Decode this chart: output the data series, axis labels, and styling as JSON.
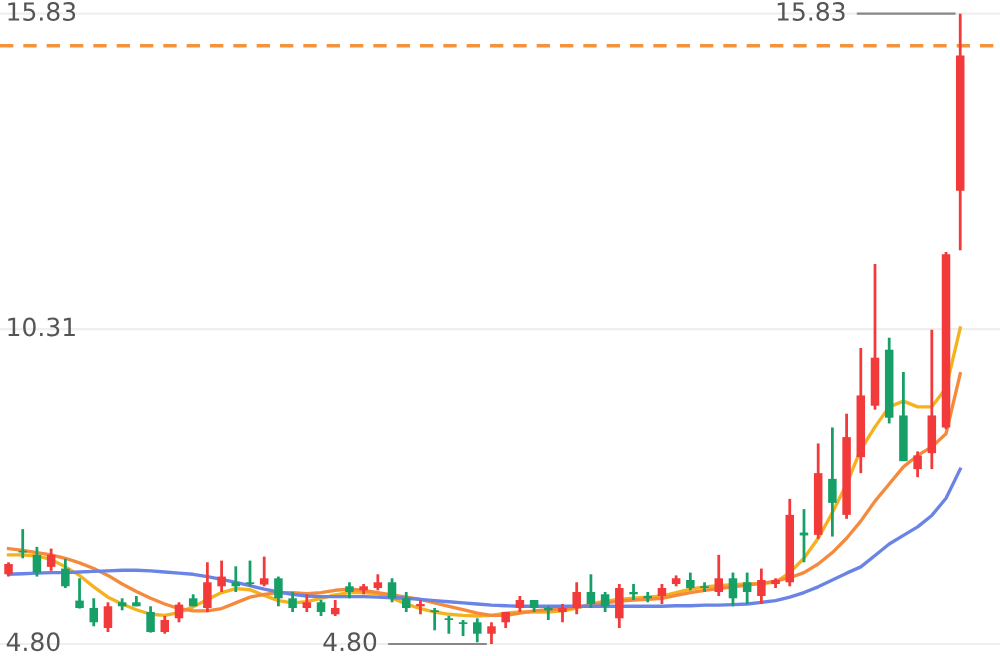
{
  "chart_data": {
    "type": "candlestick",
    "categories": [
      null,
      null,
      null,
      null,
      null,
      null,
      null,
      null,
      null,
      null,
      null,
      null,
      null,
      null,
      null,
      null,
      null,
      null,
      null,
      null,
      null,
      null,
      null,
      null,
      null,
      null,
      null,
      null,
      null,
      null,
      null,
      null,
      null,
      null,
      null,
      null,
      null,
      null,
      null,
      null,
      null,
      null,
      null,
      null,
      null,
      null,
      null,
      null,
      null,
      null,
      null,
      null,
      null,
      null,
      null,
      null,
      null,
      null,
      null,
      null,
      null,
      null,
      null,
      null,
      null,
      null,
      null,
      null
    ],
    "ohlc": [
      [
        6.02,
        6.23,
        5.98,
        6.2
      ],
      [
        6.43,
        6.81,
        6.3,
        6.4
      ],
      [
        6.36,
        6.5,
        5.98,
        6.05
      ],
      [
        6.15,
        6.47,
        6.08,
        6.36
      ],
      [
        6.12,
        6.29,
        5.78,
        5.81
      ],
      [
        5.56,
        5.95,
        5.42,
        5.43
      ],
      [
        5.43,
        5.6,
        5.11,
        5.18
      ],
      [
        5.08,
        5.53,
        5.01,
        5.46
      ],
      [
        5.53,
        5.6,
        5.39,
        5.46
      ],
      [
        5.53,
        5.64,
        5.46,
        5.46
      ],
      [
        5.36,
        5.46,
        5.0,
        5.01
      ],
      [
        5.01,
        5.29,
        4.98,
        5.22
      ],
      [
        5.25,
        5.53,
        5.18,
        5.49
      ],
      [
        5.6,
        5.67,
        5.46,
        5.46
      ],
      [
        5.43,
        6.23,
        5.36,
        5.88
      ],
      [
        5.81,
        6.26,
        5.71,
        5.98
      ],
      [
        5.88,
        6.16,
        5.71,
        5.81
      ],
      [
        5.88,
        6.26,
        5.81,
        5.85
      ],
      [
        5.84,
        6.33,
        5.81,
        5.95
      ],
      [
        5.95,
        5.98,
        5.46,
        5.6
      ],
      [
        5.6,
        5.71,
        5.36,
        5.43
      ],
      [
        5.43,
        5.67,
        5.36,
        5.53
      ],
      [
        5.53,
        5.57,
        5.29,
        5.36
      ],
      [
        5.32,
        5.57,
        5.29,
        5.43
      ],
      [
        5.81,
        5.88,
        5.6,
        5.71
      ],
      [
        5.74,
        5.85,
        5.67,
        5.81
      ],
      [
        5.78,
        6.02,
        5.74,
        5.88
      ],
      [
        5.88,
        5.95,
        5.53,
        5.6
      ],
      [
        5.6,
        5.71,
        5.36,
        5.43
      ],
      [
        5.46,
        5.57,
        5.32,
        5.5
      ],
      [
        5.39,
        5.43,
        5.04,
        5.36
      ],
      [
        5.25,
        5.29,
        4.98,
        5.22
      ],
      [
        5.18,
        5.22,
        4.94,
        5.15
      ],
      [
        5.18,
        5.25,
        4.83,
        4.98
      ],
      [
        4.98,
        5.18,
        4.8,
        5.11
      ],
      [
        5.18,
        5.36,
        5.08,
        5.36
      ],
      [
        5.43,
        5.64,
        5.36,
        5.57
      ],
      [
        5.57,
        5.57,
        5.36,
        5.43
      ],
      [
        5.43,
        5.46,
        5.22,
        5.39
      ],
      [
        5.36,
        5.5,
        5.18,
        5.43
      ],
      [
        5.43,
        5.88,
        5.32,
        5.71
      ],
      [
        5.71,
        6.02,
        5.43,
        5.5
      ],
      [
        5.67,
        5.71,
        5.36,
        5.46
      ],
      [
        5.25,
        5.85,
        5.08,
        5.78
      ],
      [
        5.71,
        5.85,
        5.57,
        5.67
      ],
      [
        5.64,
        5.71,
        5.53,
        5.6
      ],
      [
        5.64,
        5.85,
        5.5,
        5.78
      ],
      [
        5.85,
        6.0,
        5.81,
        5.95
      ],
      [
        5.92,
        6.05,
        5.74,
        5.78
      ],
      [
        5.81,
        5.88,
        5.71,
        5.78
      ],
      [
        5.71,
        6.36,
        5.64,
        5.95
      ],
      [
        5.95,
        6.05,
        5.46,
        5.6
      ],
      [
        5.88,
        6.05,
        5.5,
        5.71
      ],
      [
        5.64,
        6.12,
        5.5,
        5.92
      ],
      [
        5.85,
        5.95,
        5.78,
        5.92
      ],
      [
        5.88,
        7.34,
        5.81,
        7.06
      ],
      [
        6.75,
        7.16,
        6.23,
        6.7
      ],
      [
        6.71,
        8.31,
        6.64,
        7.79
      ],
      [
        7.69,
        8.59,
        6.68,
        7.27
      ],
      [
        7.06,
        8.83,
        6.99,
        8.42
      ],
      [
        8.07,
        9.98,
        7.79,
        9.15
      ],
      [
        8.97,
        11.45,
        8.9,
        9.81
      ],
      [
        9.95,
        10.16,
        8.66,
        8.76
      ],
      [
        8.8,
        9.56,
        8.0,
        8.0
      ],
      [
        7.86,
        8.17,
        7.72,
        8.1
      ],
      [
        8.14,
        10.3,
        7.86,
        8.8
      ],
      [
        8.59,
        11.66,
        8.56,
        11.62
      ],
      [
        12.73,
        15.83,
        11.69,
        15.1
      ]
    ],
    "series": [
      {
        "type": "line",
        "color": "#f5b21e",
        "values": [
          6.36,
          6.36,
          6.34,
          6.28,
          6.15,
          6.0,
          5.8,
          5.62,
          5.5,
          5.4,
          5.32,
          5.3,
          5.35,
          5.45,
          5.58,
          5.7,
          5.77,
          5.75,
          5.65,
          5.56,
          5.52,
          5.54,
          5.6,
          5.66,
          5.7,
          5.7,
          5.68,
          5.6,
          5.5,
          5.42,
          5.36,
          5.32,
          5.3,
          5.29,
          5.3,
          5.34,
          5.36,
          5.36,
          5.36,
          5.38,
          5.43,
          5.5,
          5.55,
          5.58,
          5.6,
          5.62,
          5.64,
          5.7,
          5.76,
          5.8,
          5.82,
          5.84,
          5.85,
          5.86,
          5.88,
          6.05,
          6.3,
          6.65,
          7.1,
          7.6,
          8.2,
          8.6,
          8.95,
          9.05,
          8.95,
          8.95,
          9.28,
          10.33
        ]
      },
      {
        "type": "line",
        "color": "#f58a3c",
        "values": [
          6.47,
          6.44,
          6.4,
          6.36,
          6.3,
          6.22,
          6.12,
          6.0,
          5.85,
          5.72,
          5.6,
          5.5,
          5.42,
          5.38,
          5.38,
          5.42,
          5.52,
          5.62,
          5.67,
          5.7,
          5.7,
          5.68,
          5.7,
          5.74,
          5.76,
          5.74,
          5.7,
          5.66,
          5.62,
          5.58,
          5.52,
          5.46,
          5.4,
          5.34,
          5.3,
          5.3,
          5.34,
          5.38,
          5.4,
          5.42,
          5.44,
          5.48,
          5.52,
          5.55,
          5.57,
          5.58,
          5.6,
          5.65,
          5.7,
          5.74,
          5.77,
          5.8,
          5.83,
          5.86,
          5.9,
          5.96,
          6.05,
          6.2,
          6.4,
          6.65,
          6.95,
          7.3,
          7.6,
          7.9,
          8.1,
          8.25,
          8.48,
          9.53
        ]
      },
      {
        "type": "line",
        "color": "#6a84e6",
        "values": [
          6.02,
          6.03,
          6.04,
          6.05,
          6.05,
          6.06,
          6.07,
          6.08,
          6.09,
          6.09,
          6.08,
          6.06,
          6.04,
          6.02,
          5.98,
          5.93,
          5.88,
          5.82,
          5.76,
          5.71,
          5.67,
          5.64,
          5.63,
          5.63,
          5.63,
          5.63,
          5.62,
          5.61,
          5.6,
          5.58,
          5.56,
          5.54,
          5.52,
          5.5,
          5.48,
          5.47,
          5.46,
          5.46,
          5.46,
          5.46,
          5.46,
          5.46,
          5.46,
          5.46,
          5.46,
          5.46,
          5.46,
          5.47,
          5.47,
          5.48,
          5.48,
          5.49,
          5.5,
          5.53,
          5.56,
          5.62,
          5.7,
          5.8,
          5.92,
          6.04,
          6.15,
          6.35,
          6.55,
          6.7,
          6.85,
          7.05,
          7.35,
          7.86
        ]
      }
    ],
    "colors": [
      "#f23a3a",
      "#16a067",
      "#16a067",
      "#f23a3a",
      "#16a067",
      "#16a067",
      "#16a067",
      "#f23a3a",
      "#16a067",
      "#16a067",
      "#16a067",
      "#f23a3a",
      "#f23a3a",
      "#16a067",
      "#f23a3a",
      "#f23a3a",
      "#16a067",
      "#16a067",
      "#f23a3a",
      "#16a067",
      "#16a067",
      "#f23a3a",
      "#16a067",
      "#f23a3a",
      "#16a067",
      "#f23a3a",
      "#f23a3a",
      "#16a067",
      "#16a067",
      "#f23a3a",
      "#16a067",
      "#16a067",
      "#16a067",
      "#16a067",
      "#f23a3a",
      "#f23a3a",
      "#f23a3a",
      "#16a067",
      "#16a067",
      "#f23a3a",
      "#f23a3a",
      "#16a067",
      "#16a067",
      "#f23a3a",
      "#16a067",
      "#16a067",
      "#f23a3a",
      "#f23a3a",
      "#16a067",
      "#16a067",
      "#f23a3a",
      "#16a067",
      "#16a067",
      "#f23a3a",
      "#f23a3a",
      "#f23a3a",
      "#16a067",
      "#f23a3a",
      "#16a067",
      "#f23a3a",
      "#f23a3a",
      "#f23a3a",
      "#16a067",
      "#16a067",
      "#f23a3a",
      "#f23a3a",
      "#f23a3a",
      "#f23a3a"
    ],
    "ylim": [
      4.59,
      16.07
    ],
    "yticks": [
      {
        "value": 4.8,
        "label": "4.80"
      },
      10.31,
      15.83
    ],
    "tick_labels": "y",
    "grid": "y",
    "ref_lines": [
      {
        "axis": "y",
        "value": 15.27,
        "color": "#f5923c",
        "line_style": "dashed"
      }
    ],
    "annotations": [
      "15.83",
      "4.80"
    ]
  }
}
